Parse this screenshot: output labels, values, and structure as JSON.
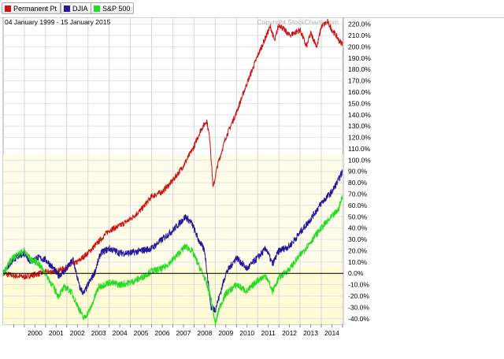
{
  "legend": [
    {
      "label": "Permanent Pt",
      "color": "#cc1414"
    },
    {
      "label": "DJIA",
      "color": "#24189c"
    },
    {
      "label": "S&P 500",
      "color": "#22dd22"
    }
  ],
  "chart_data": {
    "type": "line",
    "date_range": "04 January 1999 - 15 January 2015",
    "watermark": "Copyright StockCharts.com",
    "x_ticks": [
      "2000",
      "2001",
      "2002",
      "2003",
      "2004",
      "2005",
      "2006",
      "2007",
      "2008",
      "2009",
      "2010",
      "2011",
      "2012",
      "2013",
      "2014"
    ],
    "y_ticks": [
      "220.0%",
      "210.0%",
      "200.0%",
      "190.0%",
      "180.0%",
      "170.0%",
      "160.0%",
      "150.0%",
      "140.0%",
      "130.0%",
      "120.0%",
      "110.0%",
      "100.0%",
      "90.0%",
      "80.0%",
      "70.0%",
      "60.0%",
      "50.0%",
      "40.0%",
      "30.0%",
      "20.0%",
      "10.0%",
      "0.0%",
      "-10.0%",
      "-20.0%",
      "-30.0%",
      "-40.0%"
    ],
    "ylim": [
      -45,
      226
    ],
    "xlim": [
      1999.0,
      2015.04
    ],
    "series": [
      {
        "name": "Permanent Pt",
        "color": "#cc1414",
        "x": [
          1999.0,
          1999.5,
          2000.0,
          2000.5,
          2001.0,
          2001.5,
          2002.0,
          2002.5,
          2003.0,
          2003.5,
          2004.0,
          2004.5,
          2005.0,
          2005.5,
          2006.0,
          2006.5,
          2007.0,
          2007.5,
          2008.0,
          2008.3,
          2008.6,
          2008.75,
          2008.9,
          2009.1,
          2009.5,
          2010.0,
          2010.5,
          2011.0,
          2011.3,
          2011.6,
          2011.8,
          2012.0,
          2012.5,
          2013.0,
          2013.3,
          2013.5,
          2013.8,
          2014.0,
          2014.3,
          2014.5,
          2014.7,
          2014.85,
          2015.0
        ],
        "values": [
          0,
          -2,
          -3,
          -1,
          1,
          2,
          5,
          10,
          18,
          28,
          38,
          42,
          48,
          56,
          68,
          72,
          82,
          95,
          112,
          126,
          135,
          118,
          75,
          95,
          120,
          142,
          168,
          192,
          205,
          218,
          205,
          220,
          210,
          215,
          200,
          212,
          200,
          218,
          222,
          215,
          210,
          205,
          203
        ]
      },
      {
        "name": "DJIA",
        "color": "#24189c",
        "x": [
          1999.0,
          1999.3,
          1999.6,
          2000.0,
          2000.3,
          2000.6,
          2001.0,
          2001.3,
          2001.6,
          2001.9,
          2002.3,
          2002.6,
          2002.8,
          2003.0,
          2003.3,
          2003.6,
          2004.0,
          2004.5,
          2005.0,
          2005.5,
          2006.0,
          2006.5,
          2007.0,
          2007.3,
          2007.6,
          2007.9,
          2008.2,
          2008.5,
          2008.8,
          2009.0,
          2009.2,
          2009.5,
          2010.0,
          2010.5,
          2011.0,
          2011.4,
          2011.7,
          2012.0,
          2012.5,
          2013.0,
          2013.5,
          2014.0,
          2014.5,
          2014.8,
          2015.0
        ],
        "values": [
          0,
          8,
          14,
          18,
          10,
          14,
          12,
          6,
          -2,
          2,
          12,
          -12,
          -18,
          -10,
          0,
          18,
          22,
          18,
          18,
          20,
          22,
          30,
          38,
          44,
          50,
          44,
          30,
          20,
          -30,
          -32,
          -20,
          0,
          14,
          4,
          14,
          22,
          8,
          20,
          24,
          36,
          48,
          62,
          72,
          82,
          90
        ]
      },
      {
        "name": "S&P 500",
        "color": "#22dd22",
        "x": [
          1999.0,
          1999.3,
          1999.6,
          2000.0,
          2000.3,
          2000.6,
          2001.0,
          2001.3,
          2001.6,
          2001.9,
          2002.2,
          2002.5,
          2002.8,
          2003.1,
          2003.5,
          2004.0,
          2004.5,
          2005.0,
          2005.5,
          2006.0,
          2006.5,
          2007.0,
          2007.3,
          2007.6,
          2007.9,
          2008.2,
          2008.5,
          2008.8,
          2009.0,
          2009.2,
          2009.5,
          2010.0,
          2010.5,
          2011.0,
          2011.4,
          2011.7,
          2012.0,
          2012.5,
          2013.0,
          2013.5,
          2014.0,
          2014.5,
          2014.8,
          2015.0
        ],
        "values": [
          0,
          10,
          16,
          20,
          12,
          10,
          0,
          -10,
          -20,
          -12,
          -16,
          -28,
          -40,
          -32,
          -12,
          -8,
          -10,
          -8,
          -4,
          2,
          4,
          12,
          18,
          24,
          20,
          8,
          -4,
          -22,
          -45,
          -30,
          -18,
          -10,
          -16,
          -6,
          -2,
          -16,
          -4,
          4,
          16,
          28,
          40,
          50,
          56,
          68
        ]
      }
    ]
  }
}
